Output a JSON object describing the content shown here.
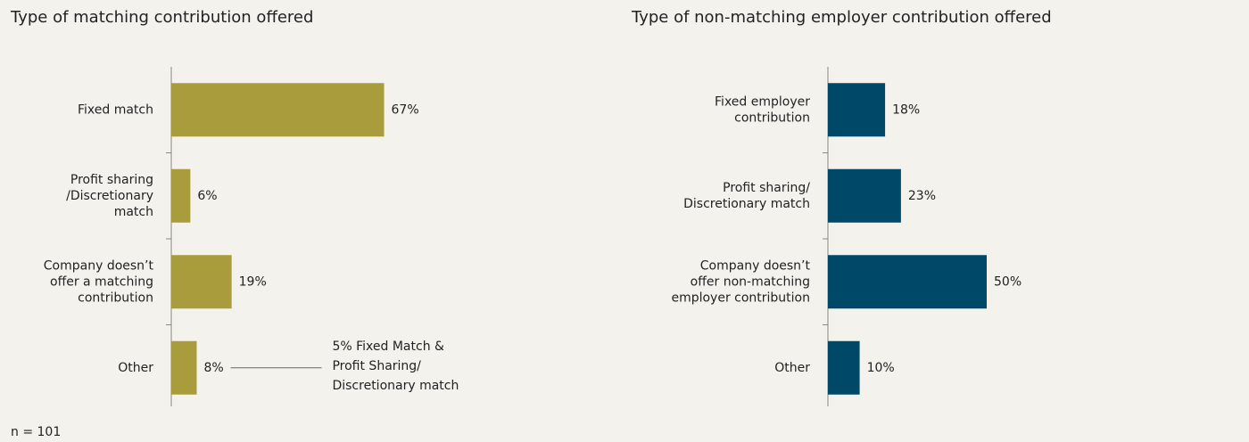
{
  "charts": [
    {
      "type": "bar",
      "orientation": "horizontal",
      "title": "Type of matching contribution offered",
      "categories": [
        [
          "Fixed match"
        ],
        [
          "Profit sharing",
          "/Discretionary",
          "match"
        ],
        [
          "Company doesn’t",
          "offer a matching",
          "contribution"
        ],
        [
          "Other"
        ]
      ],
      "values": [
        67,
        6,
        19,
        8
      ],
      "value_labels": [
        "67%",
        "6%",
        "19%",
        "8%"
      ],
      "color": "#a89c3c",
      "annotation": {
        "category": 3,
        "lines": [
          "5% Fixed Match &",
          "Profit Sharing/",
          "Discretionary match"
        ]
      }
    },
    {
      "type": "bar",
      "orientation": "horizontal",
      "title": "Type of non-matching employer contribution offered",
      "categories": [
        [
          "Fixed employer",
          "contribution"
        ],
        [
          "Profit sharing/",
          "Discretionary match"
        ],
        [
          "Company doesn’t",
          "offer non-matching",
          "employer contribution"
        ],
        [
          "Other"
        ]
      ],
      "values": [
        18,
        23,
        50,
        10
      ],
      "value_labels": [
        "18%",
        "23%",
        "50%",
        "10%"
      ],
      "color": "#004868"
    }
  ],
  "footnote": "n = 101"
}
